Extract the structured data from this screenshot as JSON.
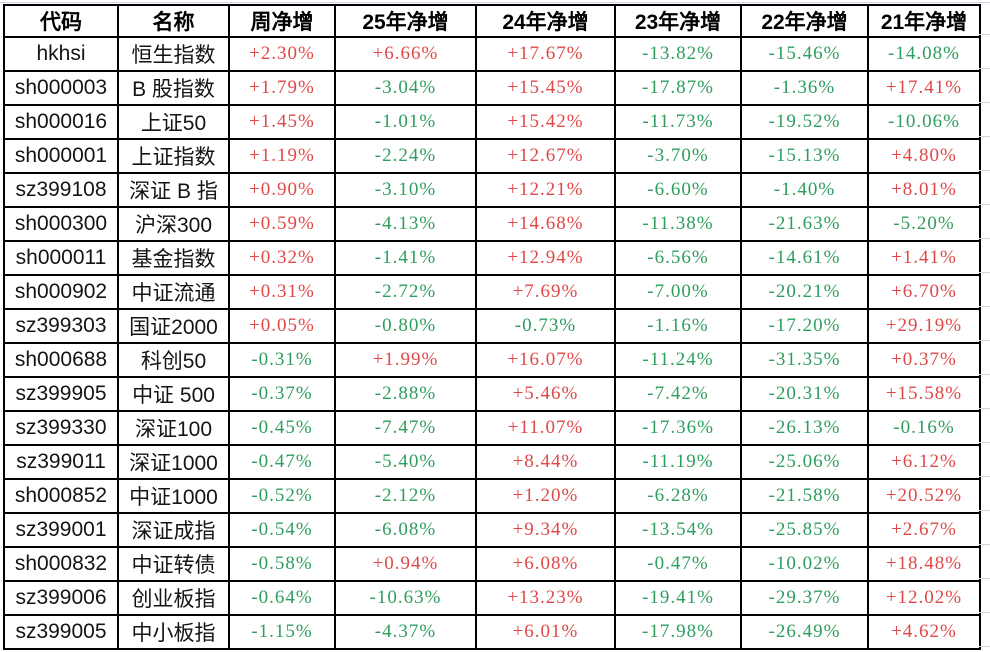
{
  "colors": {
    "positive": "#e04848",
    "negative": "#2e9e5e",
    "border": "#000000",
    "gridline": "#ccd6e4"
  },
  "table": {
    "headers": [
      "代码",
      "名称",
      "周净增",
      "25年净增",
      "24年净增",
      "23年净增",
      "22年净增",
      "21年净增"
    ],
    "rows": [
      {
        "code": "hkhsi",
        "name": "恒生指数",
        "values": [
          "+2.30%",
          "+6.66%",
          "+17.67%",
          "-13.82%",
          "-15.46%",
          "-14.08%"
        ]
      },
      {
        "code": "sh000003",
        "name": "B 股指数",
        "values": [
          "+1.79%",
          "-3.04%",
          "+15.45%",
          "-17.87%",
          "-1.36%",
          "+17.41%"
        ]
      },
      {
        "code": "sh000016",
        "name": "上证50",
        "values": [
          "+1.45%",
          "-1.01%",
          "+15.42%",
          "-11.73%",
          "-19.52%",
          "-10.06%"
        ]
      },
      {
        "code": "sh000001",
        "name": "上证指数",
        "values": [
          "+1.19%",
          "-2.24%",
          "+12.67%",
          "-3.70%",
          "-15.13%",
          "+4.80%"
        ]
      },
      {
        "code": "sz399108",
        "name": "深证 B 指",
        "values": [
          "+0.90%",
          "-3.10%",
          "+12.21%",
          "-6.60%",
          "-1.40%",
          "+8.01%"
        ]
      },
      {
        "code": "sh000300",
        "name": "沪深300",
        "values": [
          "+0.59%",
          "-4.13%",
          "+14.68%",
          "-11.38%",
          "-21.63%",
          "-5.20%"
        ]
      },
      {
        "code": "sh000011",
        "name": "基金指数",
        "values": [
          "+0.32%",
          "-1.41%",
          "+12.94%",
          "-6.56%",
          "-14.61%",
          "+1.41%"
        ]
      },
      {
        "code": "sh000902",
        "name": "中证流通",
        "values": [
          "+0.31%",
          "-2.72%",
          "+7.69%",
          "-7.00%",
          "-20.21%",
          "+6.70%"
        ]
      },
      {
        "code": "sz399303",
        "name": "国证2000",
        "values": [
          "+0.05%",
          "-0.80%",
          "-0.73%",
          "-1.16%",
          "-17.20%",
          "+29.19%"
        ]
      },
      {
        "code": "sh000688",
        "name": "科创50",
        "values": [
          "-0.31%",
          "+1.99%",
          "+16.07%",
          "-11.24%",
          "-31.35%",
          "+0.37%"
        ]
      },
      {
        "code": "sz399905",
        "name": "中证 500",
        "values": [
          "-0.37%",
          "-2.88%",
          "+5.46%",
          "-7.42%",
          "-20.31%",
          "+15.58%"
        ]
      },
      {
        "code": "sz399330",
        "name": "深证100",
        "values": [
          "-0.45%",
          "-7.47%",
          "+11.07%",
          "-17.36%",
          "-26.13%",
          "-0.16%"
        ]
      },
      {
        "code": "sz399011",
        "name": "深证1000",
        "values": [
          "-0.47%",
          "-5.40%",
          "+8.44%",
          "-11.19%",
          "-25.06%",
          "+6.12%"
        ]
      },
      {
        "code": "sh000852",
        "name": "中证1000",
        "values": [
          "-0.52%",
          "-2.12%",
          "+1.20%",
          "-6.28%",
          "-21.58%",
          "+20.52%"
        ]
      },
      {
        "code": "sz399001",
        "name": "深证成指",
        "values": [
          "-0.54%",
          "-6.08%",
          "+9.34%",
          "-13.54%",
          "-25.85%",
          "+2.67%"
        ]
      },
      {
        "code": "sh000832",
        "name": "中证转债",
        "values": [
          "-0.58%",
          "+0.94%",
          "+6.08%",
          "-0.47%",
          "-10.02%",
          "+18.48%"
        ]
      },
      {
        "code": "sz399006",
        "name": "创业板指",
        "values": [
          "-0.64%",
          "-10.63%",
          "+13.23%",
          "-19.41%",
          "-29.37%",
          "+12.02%"
        ]
      },
      {
        "code": "sz399005",
        "name": "中小板指",
        "values": [
          "-1.15%",
          "-4.37%",
          "+6.01%",
          "-17.98%",
          "-26.49%",
          "+4.62%"
        ]
      }
    ]
  }
}
